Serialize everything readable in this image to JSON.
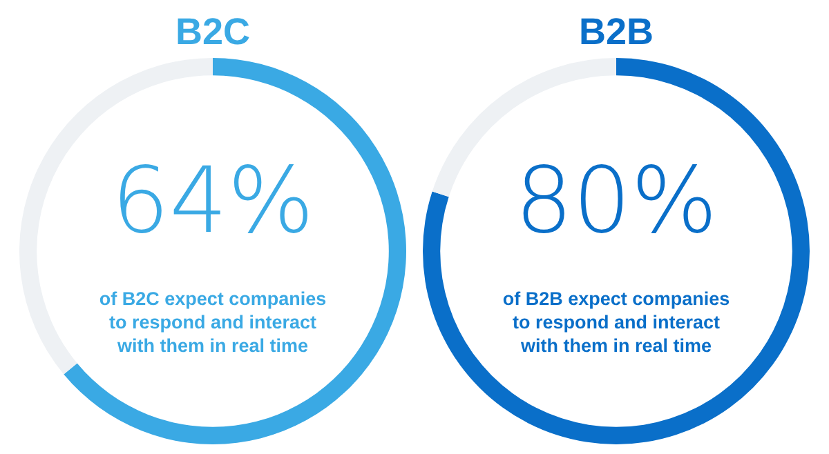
{
  "chart_data": [
    {
      "type": "donut",
      "title": "B2C",
      "categories": [
        null,
        null
      ],
      "values": [
        64,
        36
      ],
      "colors": [
        "#3aa9e4",
        "#eef1f4"
      ],
      "value_labels": [
        "64%",
        null
      ],
      "annotations": [
        "of B2C expect companies to respond and interact with them in real time"
      ],
      "legend": false
    },
    {
      "type": "donut",
      "title": "B2B",
      "categories": [
        null,
        null
      ],
      "values": [
        80,
        20
      ],
      "colors": [
        "#0a6fc9",
        "#eef1f4"
      ],
      "value_labels": [
        "80%",
        null
      ],
      "annotations": [
        "of B2B expect companies to respond and interact with them in real time"
      ],
      "legend": false
    }
  ]
}
